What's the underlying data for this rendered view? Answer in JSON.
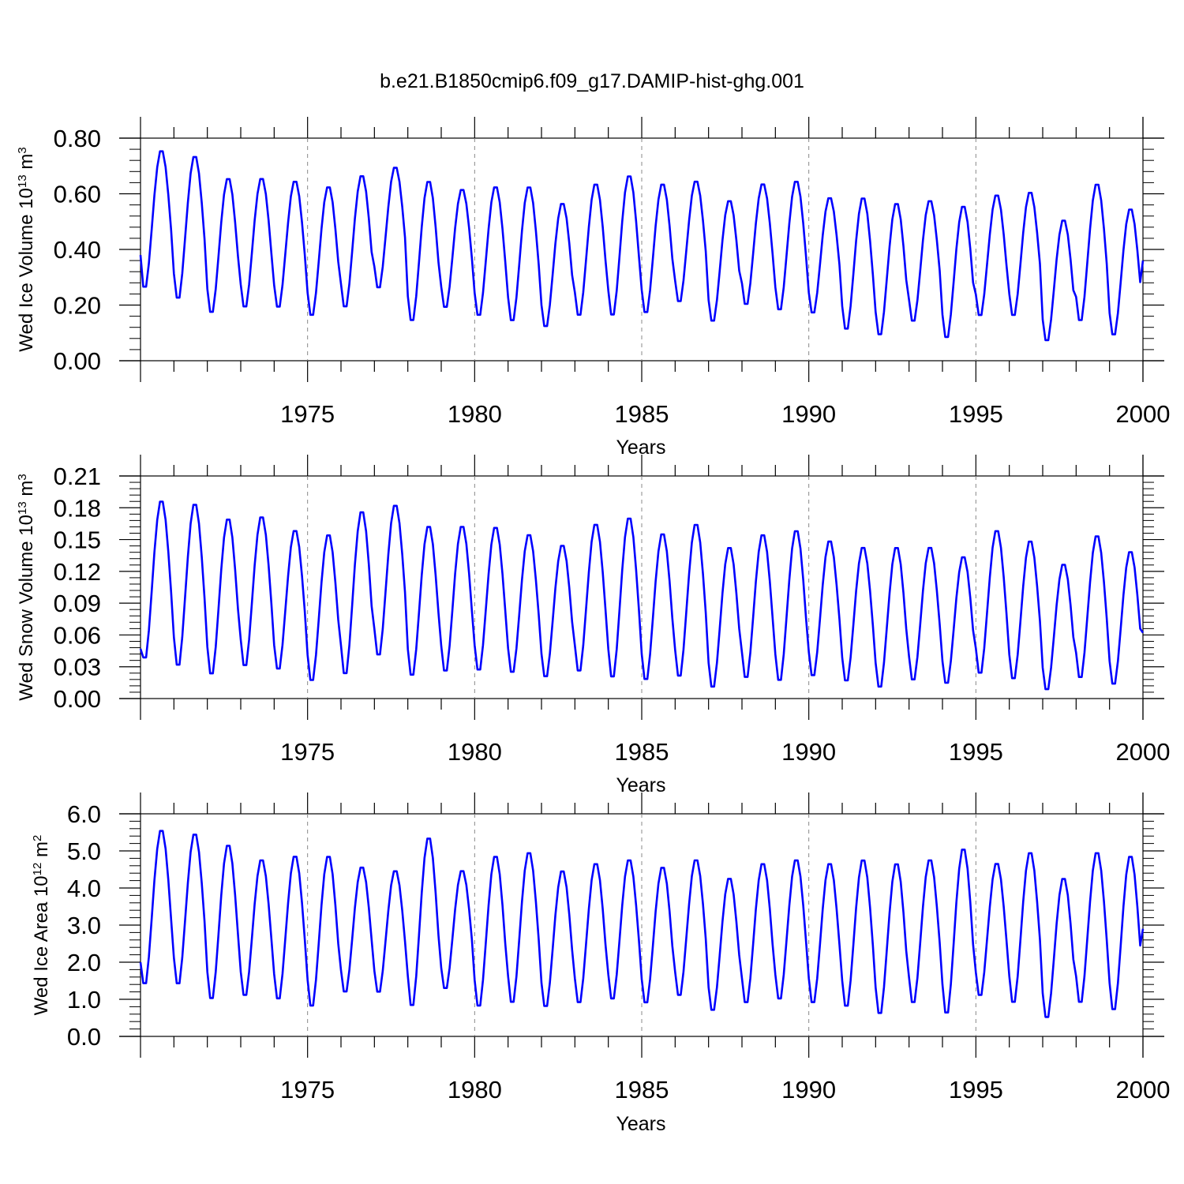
{
  "title": "b.e21.B1850cmip6.f09_g17.DAMIP-hist-ghg.001",
  "colors": {
    "line": "#0000ff",
    "axis": "#000000",
    "gridline": "#888888"
  },
  "chart_data": [
    {
      "type": "line",
      "ylabel_main": "Wed Ice Volume 10",
      "ylabel_exp": "13",
      "ylabel_unit": " m",
      "ylabel_unit_exp": "3",
      "xlabel": "Years",
      "xlim": [
        1970,
        2000
      ],
      "ylim": [
        0,
        0.8
      ],
      "grid": "dashed vertical lines at every 5 years",
      "xticks": [
        "1975",
        "1980",
        "1985",
        "1990",
        "1995",
        "2000"
      ],
      "yticks": [
        "0.00",
        "0.20",
        "0.40",
        "0.60",
        "0.80"
      ],
      "series": [
        {
          "color": "#0000ff",
          "annual_max": [
            0.76,
            0.74,
            0.66,
            0.66,
            0.65,
            0.63,
            0.67,
            0.7,
            0.65,
            0.62,
            0.63,
            0.63,
            0.57,
            0.64,
            0.67,
            0.64,
            0.65,
            0.58,
            0.64,
            0.65,
            0.59,
            0.59,
            0.57,
            0.58,
            0.56,
            0.6,
            0.61,
            0.51,
            0.64,
            0.55
          ],
          "annual_min": [
            0.25,
            0.21,
            0.16,
            0.18,
            0.18,
            0.15,
            0.18,
            0.25,
            0.13,
            0.18,
            0.15,
            0.13,
            0.11,
            0.15,
            0.15,
            0.16,
            0.2,
            0.13,
            0.19,
            0.17,
            0.16,
            0.1,
            0.08,
            0.13,
            0.07,
            0.15,
            0.15,
            0.06,
            0.13,
            0.08
          ],
          "start_value": 0.38,
          "end_value": 0.36
        }
      ]
    },
    {
      "type": "line",
      "ylabel_main": "Wed Snow Volume 10",
      "ylabel_exp": "13",
      "ylabel_unit": " m",
      "ylabel_unit_exp": "3",
      "xlabel": "Years",
      "xlim": [
        1970,
        2000
      ],
      "ylim": [
        0,
        0.21
      ],
      "grid": "dashed vertical lines at every 5 years",
      "xticks": [
        "1975",
        "1980",
        "1985",
        "1990",
        "1995",
        "2000"
      ],
      "yticks": [
        "0.00",
        "0.03",
        "0.06",
        "0.09",
        "0.12",
        "0.15",
        "0.18",
        "0.21"
      ],
      "series": [
        {
          "color": "#0000ff",
          "annual_max": [
            0.188,
            0.185,
            0.171,
            0.173,
            0.16,
            0.156,
            0.178,
            0.184,
            0.164,
            0.164,
            0.163,
            0.156,
            0.146,
            0.166,
            0.172,
            0.157,
            0.166,
            0.144,
            0.156,
            0.16,
            0.15,
            0.144,
            0.144,
            0.144,
            0.135,
            0.16,
            0.15,
            0.128,
            0.155,
            0.14
          ],
          "annual_min": [
            0.034,
            0.027,
            0.019,
            0.027,
            0.024,
            0.013,
            0.019,
            0.037,
            0.018,
            0.022,
            0.023,
            0.021,
            0.017,
            0.022,
            0.016,
            0.014,
            0.017,
            0.007,
            0.016,
            0.013,
            0.018,
            0.013,
            0.007,
            0.014,
            0.011,
            0.02,
            0.015,
            0.005,
            0.016,
            0.01
          ],
          "start_value": 0.047,
          "end_value": 0.062
        }
      ]
    },
    {
      "type": "line",
      "ylabel_main": "Wed Ice Area 10",
      "ylabel_exp": "12",
      "ylabel_unit": " m",
      "ylabel_unit_exp": "2",
      "xlabel": "Years",
      "xlim": [
        1970,
        2000
      ],
      "ylim": [
        0,
        6
      ],
      "grid": "dashed vertical lines at every 5 years",
      "xticks": [
        "1975",
        "1980",
        "1985",
        "1990",
        "1995",
        "2000"
      ],
      "yticks": [
        "0.0",
        "1.0",
        "2.0",
        "3.0",
        "4.0",
        "5.0",
        "6.0"
      ],
      "series": [
        {
          "color": "#0000ff",
          "annual_max": [
            5.6,
            5.5,
            5.2,
            4.8,
            4.9,
            4.9,
            4.6,
            4.5,
            5.4,
            4.5,
            4.9,
            5.0,
            4.5,
            4.7,
            4.8,
            4.6,
            4.8,
            4.3,
            4.7,
            4.8,
            4.7,
            4.8,
            4.7,
            4.8,
            5.1,
            4.7,
            5.0,
            4.3,
            5.0,
            4.9
          ],
          "annual_min": [
            1.3,
            1.3,
            0.9,
            1.0,
            0.9,
            0.7,
            1.1,
            1.1,
            0.7,
            1.2,
            0.7,
            0.8,
            0.7,
            0.8,
            0.9,
            0.8,
            1.0,
            0.6,
            0.8,
            0.9,
            0.8,
            0.7,
            0.5,
            0.8,
            0.5,
            1.0,
            0.8,
            0.4,
            0.8,
            0.6
          ],
          "start_value": 2.0,
          "end_value": 2.9
        }
      ]
    }
  ]
}
